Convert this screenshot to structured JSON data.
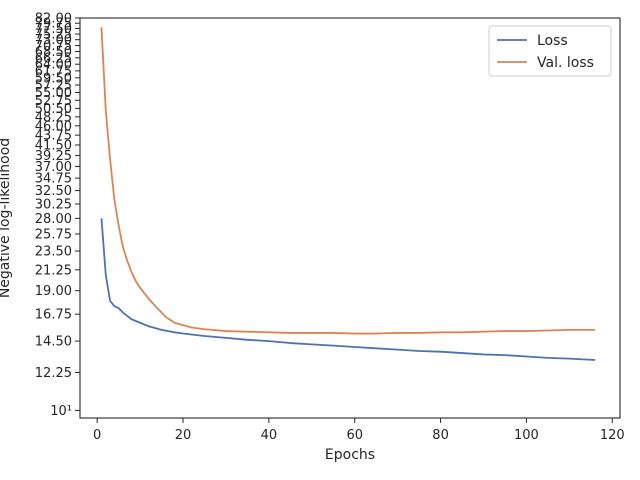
{
  "chart_data": {
    "type": "line",
    "xlabel": "Epochs",
    "ylabel": "Negative log-likelihood",
    "yscale": "log",
    "xlim": [
      -4,
      121.8
    ],
    "ylim": [
      9.6,
      82.0
    ],
    "grid": false,
    "legend_position": "top-right",
    "x_ticks": [
      0,
      20,
      40,
      60,
      80,
      100,
      120
    ],
    "x_tick_labels": [
      "0",
      "20",
      "40",
      "60",
      "80",
      "100",
      "120"
    ],
    "y_ticks": [
      10,
      12.25,
      14.5,
      16.75,
      19.0,
      21.25,
      23.5,
      25.75,
      28.0,
      30.25,
      32.5,
      34.75,
      37.0,
      39.25,
      41.5,
      43.75,
      46.0,
      48.25,
      50.5,
      52.75,
      55.0,
      57.25,
      59.5,
      61.75,
      64.0,
      66.25,
      68.5,
      70.75,
      73.0,
      75.25,
      77.5,
      79.75,
      82.0
    ],
    "y_tick_labels": [
      "10¹",
      "12.25",
      "14.50",
      "16.75",
      "19.00",
      "21.25",
      "23.50",
      "25.75",
      "28.00",
      "30.25",
      "32.50",
      "34.75",
      "37.00",
      "39.25",
      "41.50",
      "43.75",
      "46.00",
      "48.25",
      "50.50",
      "52.75",
      "55.00",
      "57.25",
      "59.50",
      "61.75",
      "64.00",
      "66.25",
      "68.50",
      "70.75",
      "73.00",
      "75.25",
      "77.50",
      "79.75",
      "82.00"
    ],
    "series": [
      {
        "name": "Loss",
        "color": "#4c72b0",
        "x": [
          1,
          2,
          3,
          4,
          5,
          6,
          8,
          10,
          12,
          15,
          18,
          20,
          25,
          30,
          35,
          40,
          45,
          50,
          55,
          60,
          65,
          70,
          75,
          80,
          85,
          90,
          95,
          100,
          105,
          110,
          116
        ],
        "y": [
          28.0,
          20.7,
          18.0,
          17.5,
          17.3,
          16.9,
          16.3,
          16.0,
          15.7,
          15.4,
          15.2,
          15.1,
          14.9,
          14.75,
          14.6,
          14.5,
          14.35,
          14.25,
          14.15,
          14.05,
          13.95,
          13.85,
          13.75,
          13.7,
          13.6,
          13.5,
          13.45,
          13.35,
          13.25,
          13.2,
          13.1
        ]
      },
      {
        "name": "Val. loss",
        "color": "#dd8452",
        "x": [
          1,
          2,
          3,
          4,
          5,
          6,
          7,
          8,
          9,
          10,
          12,
          14,
          16,
          18,
          20,
          22,
          25,
          30,
          35,
          40,
          45,
          50,
          55,
          60,
          65,
          70,
          75,
          80,
          85,
          90,
          95,
          100,
          105,
          110,
          116
        ],
        "y": [
          78.0,
          50.0,
          38.5,
          31.0,
          27.0,
          24.0,
          22.3,
          21.0,
          20.0,
          19.3,
          18.2,
          17.3,
          16.5,
          16.0,
          15.8,
          15.6,
          15.45,
          15.3,
          15.25,
          15.2,
          15.15,
          15.15,
          15.15,
          15.1,
          15.1,
          15.15,
          15.15,
          15.2,
          15.2,
          15.25,
          15.3,
          15.3,
          15.35,
          15.4,
          15.4
        ]
      }
    ]
  }
}
